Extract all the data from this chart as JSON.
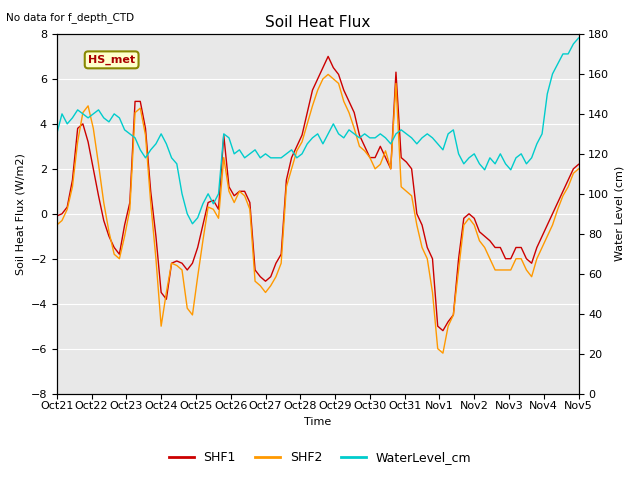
{
  "title": "Soil Heat Flux",
  "top_left_text": "No data for f_depth_CTD",
  "annotation_text": "HS_met",
  "ylabel_left": "Soil Heat Flux (W/m2)",
  "ylabel_right": "Water Level (cm)",
  "xlabel": "Time",
  "ylim_left": [
    -8,
    8
  ],
  "ylim_right": [
    0,
    180
  ],
  "xtick_labels": [
    "Oct 21",
    "Oct 22",
    "Oct 23",
    "Oct 24",
    "Oct 25",
    "Oct 26",
    "Oct 27",
    "Oct 28",
    "Oct 29",
    "Oct 30",
    "Oct 31",
    "Nov 1",
    "Nov 2",
    "Nov 3",
    "Nov 4",
    "Nov 5"
  ],
  "background_color": "#e8e8e8",
  "legend_labels": [
    "SHF1",
    "SHF2",
    "WaterLevel_cm"
  ],
  "shf1_color": "#cc0000",
  "shf2_color": "#ff9900",
  "water_color": "#00cccc",
  "shf1": [
    -0.1,
    0.0,
    0.3,
    1.5,
    3.8,
    4.0,
    3.2,
    2.0,
    0.8,
    -0.3,
    -1.0,
    -1.5,
    -1.8,
    -0.5,
    0.5,
    5.0,
    5.0,
    3.8,
    1.0,
    -1.0,
    -3.5,
    -3.8,
    -2.2,
    -2.1,
    -2.2,
    -2.5,
    -2.2,
    -1.5,
    -0.5,
    0.5,
    0.6,
    0.2,
    3.5,
    1.2,
    0.8,
    1.0,
    1.0,
    0.5,
    -2.5,
    -2.8,
    -3.0,
    -2.8,
    -2.2,
    -1.8,
    1.5,
    2.5,
    3.0,
    3.5,
    4.5,
    5.5,
    6.0,
    6.5,
    7.0,
    6.5,
    6.2,
    5.5,
    5.0,
    4.5,
    3.5,
    3.0,
    2.5,
    2.5,
    3.0,
    2.5,
    2.0,
    6.3,
    2.5,
    2.3,
    2.0,
    0.0,
    -0.5,
    -1.5,
    -2.0,
    -5.0,
    -5.2,
    -4.8,
    -4.5,
    -2.0,
    -0.2,
    0.0,
    -0.2,
    -0.8,
    -1.0,
    -1.2,
    -1.5,
    -1.5,
    -2.0,
    -2.0,
    -1.5,
    -1.5,
    -2.0,
    -2.2,
    -1.5,
    -1.0,
    -0.5,
    0.0,
    0.5,
    1.0,
    1.5,
    2.0,
    2.2
  ],
  "shf2": [
    -0.5,
    -0.3,
    0.2,
    1.2,
    3.2,
    4.5,
    4.8,
    3.8,
    2.2,
    0.5,
    -0.8,
    -1.8,
    -2.0,
    -1.0,
    0.2,
    4.5,
    4.7,
    3.5,
    0.5,
    -2.0,
    -5.0,
    -3.5,
    -2.2,
    -2.3,
    -2.5,
    -4.2,
    -4.5,
    -2.8,
    -1.2,
    0.3,
    0.2,
    -0.2,
    2.5,
    1.0,
    0.5,
    1.0,
    0.8,
    0.2,
    -3.0,
    -3.2,
    -3.5,
    -3.2,
    -2.8,
    -2.2,
    1.2,
    2.0,
    2.8,
    3.2,
    4.0,
    4.8,
    5.5,
    6.0,
    6.2,
    6.0,
    5.8,
    5.0,
    4.5,
    3.8,
    3.0,
    2.8,
    2.5,
    2.0,
    2.2,
    2.8,
    2.0,
    5.8,
    1.2,
    1.0,
    0.8,
    -0.5,
    -1.5,
    -2.0,
    -3.5,
    -6.0,
    -6.2,
    -5.0,
    -4.5,
    -2.5,
    -0.5,
    -0.2,
    -0.5,
    -1.2,
    -1.5,
    -2.0,
    -2.5,
    -2.5,
    -2.5,
    -2.5,
    -2.0,
    -2.0,
    -2.5,
    -2.8,
    -2.0,
    -1.5,
    -1.0,
    -0.5,
    0.2,
    0.8,
    1.2,
    1.8,
    2.0
  ],
  "water_level": [
    130,
    140,
    135,
    138,
    142,
    140,
    138,
    140,
    142,
    138,
    136,
    140,
    138,
    132,
    130,
    128,
    122,
    118,
    122,
    125,
    130,
    125,
    118,
    115,
    100,
    90,
    85,
    88,
    95,
    100,
    95,
    100,
    130,
    128,
    120,
    122,
    118,
    120,
    122,
    118,
    120,
    118,
    118,
    118,
    120,
    122,
    118,
    120,
    125,
    128,
    130,
    125,
    130,
    135,
    130,
    128,
    132,
    130,
    128,
    130,
    128,
    128,
    130,
    128,
    125,
    130,
    132,
    130,
    128,
    125,
    128,
    130,
    128,
    125,
    122,
    130,
    132,
    120,
    115,
    118,
    120,
    115,
    112,
    118,
    115,
    120,
    115,
    112,
    118,
    120,
    115,
    118,
    125,
    130,
    150,
    160,
    165,
    170,
    170,
    175,
    178
  ]
}
